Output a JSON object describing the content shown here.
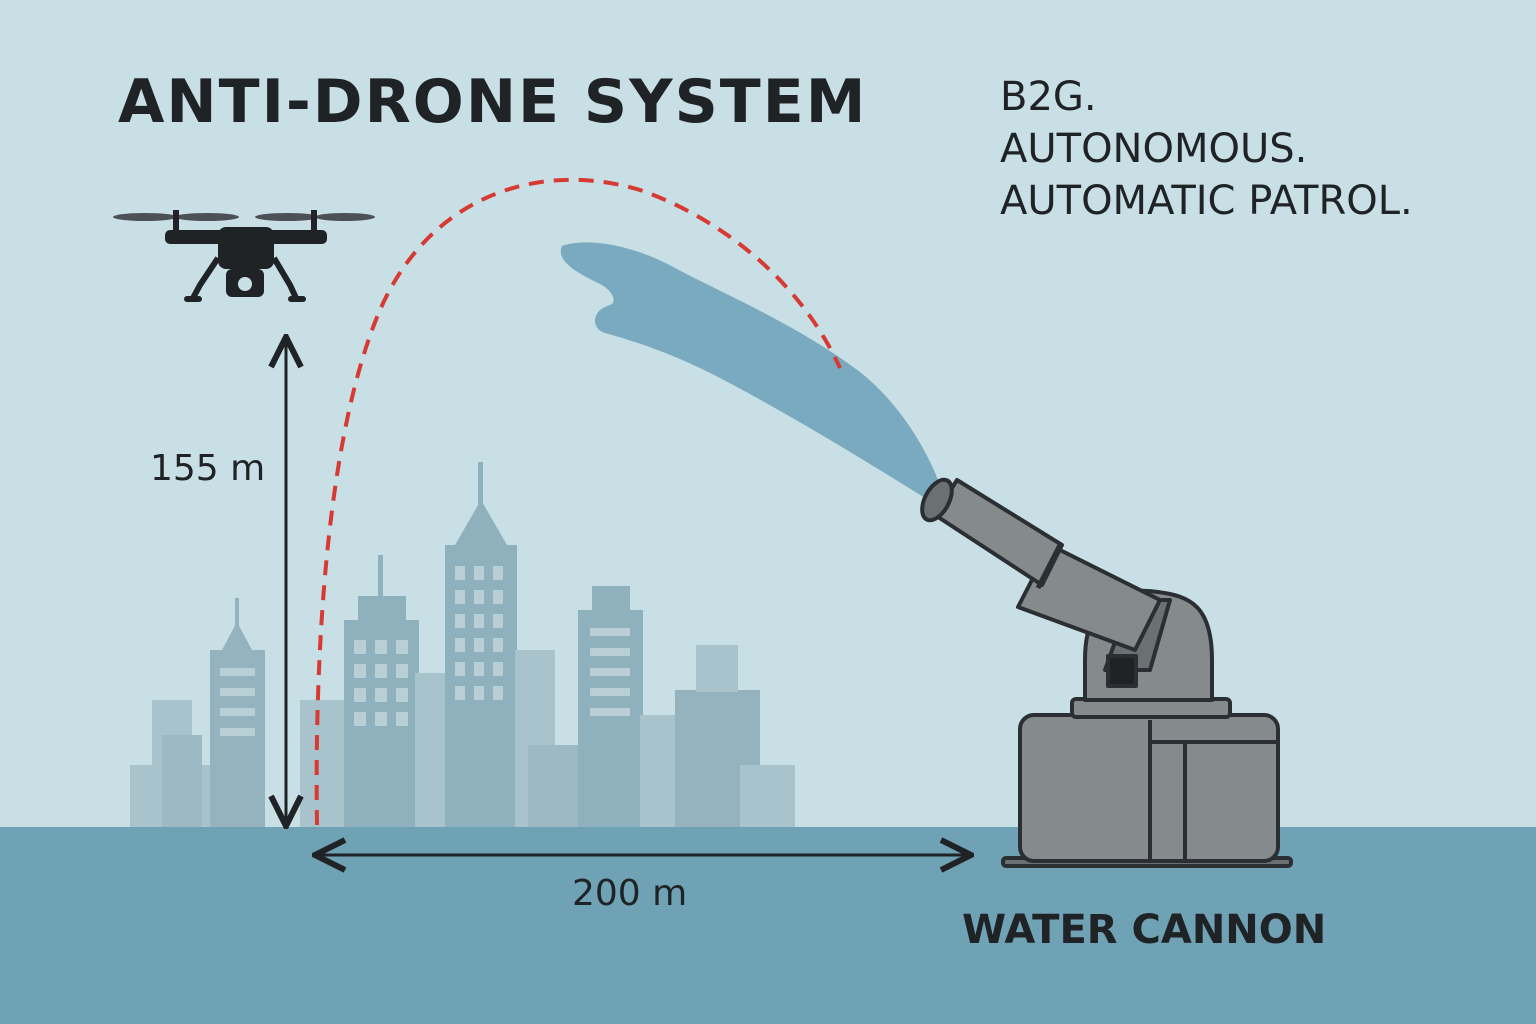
{
  "title": "ANTI-DRONE SYSTEM",
  "tagline": [
    "B2G.",
    "AUTONOMOUS.",
    "AUTOMATIC PATROL."
  ],
  "height_label": "155 m",
  "distance_label": "200 m",
  "cannon_label": "WATER CANNON",
  "colors": {
    "sky": "#c8dfe6",
    "ground": "#6fa2b4",
    "buildings": "#8fb0bd",
    "buildings_light": "#a9c3cc",
    "trajectory": "#d63a33",
    "water_jet": "#7aaabf",
    "cannon": "#858a8d",
    "outline": "#1f2326"
  },
  "icons": [
    "drone-icon",
    "water-cannon-icon",
    "city-skyline"
  ]
}
